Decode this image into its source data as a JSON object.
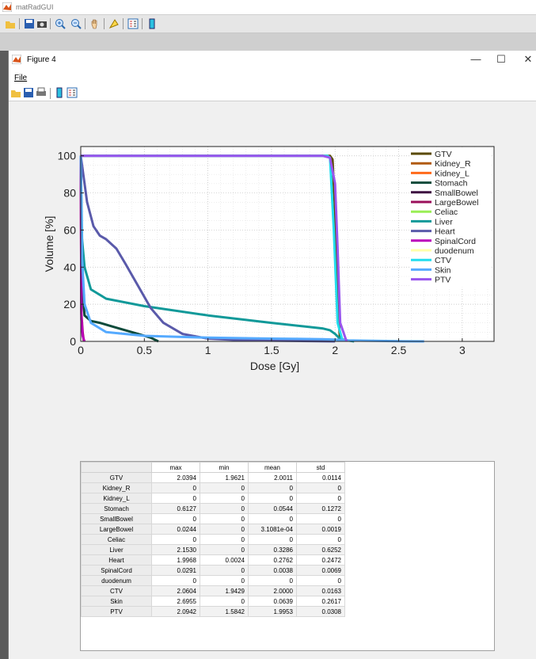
{
  "app": {
    "title": "matRadGUI"
  },
  "figure": {
    "title": "Figure 4",
    "menu": {
      "file": "File"
    }
  },
  "window_controls": {
    "minimize": "—",
    "maximize": "☐",
    "close": "✕"
  },
  "chart_data": {
    "type": "line",
    "title": "",
    "xlabel": "Dose [Gy]",
    "ylabel": "Volume [%]",
    "xlim": [
      0,
      3.25
    ],
    "ylim": [
      0,
      105
    ],
    "xticks": [
      "0",
      "0.5",
      "1",
      "1.5",
      "2",
      "2.5",
      "3"
    ],
    "yticks": [
      "0",
      "20",
      "40",
      "60",
      "80",
      "100"
    ],
    "grid": true,
    "legend_position": "top-right",
    "series": [
      {
        "name": "GTV",
        "color": "#5a4a00",
        "x": [
          0,
          1.96,
          1.98,
          2.0,
          2.02,
          2.04
        ],
        "y": [
          100,
          100,
          98,
          70,
          20,
          0
        ]
      },
      {
        "name": "Kidney_R",
        "color": "#b05a10",
        "x": [
          0,
          0
        ],
        "y": [
          0,
          0
        ]
      },
      {
        "name": "Kidney_L",
        "color": "#ff6a1a",
        "x": [
          0,
          0
        ],
        "y": [
          0,
          0
        ]
      },
      {
        "name": "Stomach",
        "color": "#0d4a3a",
        "x": [
          0,
          0.01,
          0.03,
          0.08,
          0.15,
          0.25,
          0.35,
          0.45,
          0.55,
          0.61
        ],
        "y": [
          100,
          30,
          14,
          11,
          10,
          8,
          6,
          4,
          2,
          0
        ]
      },
      {
        "name": "SmallBowel",
        "color": "#3d0f40",
        "x": [
          0,
          0
        ],
        "y": [
          0,
          0
        ]
      },
      {
        "name": "LargeBowel",
        "color": "#9a0f5a",
        "x": [
          0,
          0.005,
          0.015,
          0.024
        ],
        "y": [
          100,
          15,
          5,
          0
        ]
      },
      {
        "name": "Celiac",
        "color": "#99ee55",
        "x": [
          0,
          0
        ],
        "y": [
          0,
          0
        ]
      },
      {
        "name": "Liver",
        "color": "#119999",
        "x": [
          0,
          0.01,
          0.03,
          0.08,
          0.2,
          0.5,
          1.0,
          1.5,
          1.9,
          1.96,
          2.0,
          2.03,
          2.06,
          2.1,
          2.15
        ],
        "y": [
          100,
          55,
          40,
          28,
          23,
          19,
          14,
          10,
          7,
          6,
          4,
          2,
          1,
          0.5,
          0
        ]
      },
      {
        "name": "Heart",
        "color": "#5a5aaa",
        "x": [
          0,
          0.02,
          0.05,
          0.1,
          0.15,
          0.2,
          0.28,
          0.35,
          0.45,
          0.55,
          0.65,
          0.8,
          1.0,
          1.3,
          2.0
        ],
        "y": [
          100,
          90,
          75,
          62,
          57,
          55,
          50,
          42,
          30,
          18,
          10,
          4,
          1.5,
          0.5,
          0
        ]
      },
      {
        "name": "SpinalCord",
        "color": "#bb00bb",
        "x": [
          0,
          0.005,
          0.015,
          0.029
        ],
        "y": [
          100,
          12,
          3,
          0
        ]
      },
      {
        "name": "duodenum",
        "color": "#ffffaa",
        "x": [
          0,
          0
        ],
        "y": [
          0,
          0
        ]
      },
      {
        "name": "CTV",
        "color": "#22ddee",
        "x": [
          0,
          1.94,
          1.96,
          1.99,
          2.02,
          2.06
        ],
        "y": [
          100,
          100,
          99,
          60,
          10,
          0
        ]
      },
      {
        "name": "Skin",
        "color": "#55aaff",
        "x": [
          0,
          0.01,
          0.03,
          0.08,
          0.2,
          0.5,
          1.0,
          1.5,
          1.9,
          2.0,
          2.1,
          2.3,
          2.5,
          2.7
        ],
        "y": [
          100,
          45,
          20,
          10,
          5,
          3,
          2,
          1.5,
          1.2,
          1,
          0.5,
          0.3,
          0.1,
          0
        ]
      },
      {
        "name": "PTV",
        "color": "#9955ee",
        "x": [
          0,
          1.58,
          1.9,
          1.96,
          2.0,
          2.02,
          2.04,
          2.09
        ],
        "y": [
          100,
          100,
          100,
          99,
          85,
          50,
          10,
          0
        ]
      }
    ]
  },
  "table": {
    "columns": [
      "max",
      "min",
      "mean",
      "std"
    ],
    "rows": [
      {
        "name": "GTV",
        "values": [
          "2.0394",
          "1.9621",
          "2.0011",
          "0.0114"
        ]
      },
      {
        "name": "Kidney_R",
        "values": [
          "0",
          "0",
          "0",
          "0"
        ]
      },
      {
        "name": "Kidney_L",
        "values": [
          "0",
          "0",
          "0",
          "0"
        ]
      },
      {
        "name": "Stomach",
        "values": [
          "0.6127",
          "0",
          "0.0544",
          "0.1272"
        ]
      },
      {
        "name": "SmallBowel",
        "values": [
          "0",
          "0",
          "0",
          "0"
        ]
      },
      {
        "name": "LargeBowel",
        "values": [
          "0.0244",
          "0",
          "3.1081e-04",
          "0.0019"
        ]
      },
      {
        "name": "Celiac",
        "values": [
          "0",
          "0",
          "0",
          "0"
        ]
      },
      {
        "name": "Liver",
        "values": [
          "2.1530",
          "0",
          "0.3286",
          "0.6252"
        ]
      },
      {
        "name": "Heart",
        "values": [
          "1.9968",
          "0.0024",
          "0.2762",
          "0.2472"
        ]
      },
      {
        "name": "SpinalCord",
        "values": [
          "0.0291",
          "0",
          "0.0038",
          "0.0069"
        ]
      },
      {
        "name": "duodenum",
        "values": [
          "0",
          "0",
          "0",
          "0"
        ]
      },
      {
        "name": "CTV",
        "values": [
          "2.0604",
          "1.9429",
          "2.0000",
          "0.0163"
        ]
      },
      {
        "name": "Skin",
        "values": [
          "2.6955",
          "0",
          "0.0639",
          "0.2617"
        ]
      },
      {
        "name": "PTV",
        "values": [
          "2.0942",
          "1.5842",
          "1.9953",
          "0.0308"
        ]
      }
    ]
  }
}
